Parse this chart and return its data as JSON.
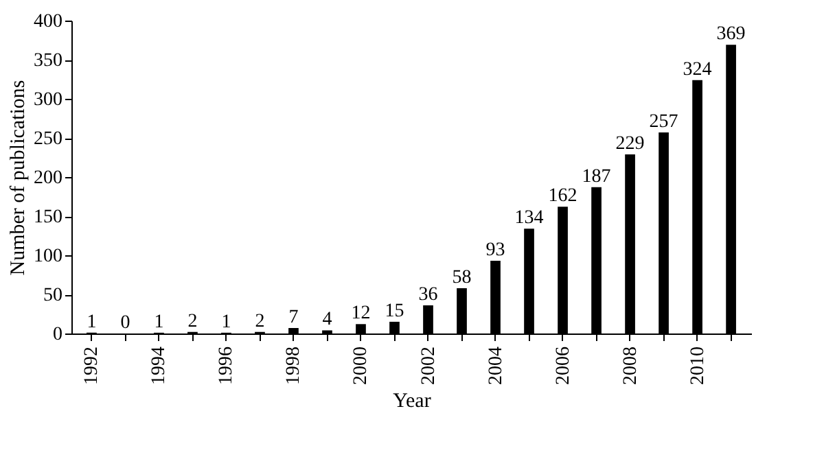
{
  "chart_data": {
    "type": "bar",
    "xlabel": "Year",
    "ylabel": "Number of publications",
    "categories": [
      "1992",
      null,
      "1994",
      null,
      "1996",
      null,
      "1998",
      null,
      "2000",
      null,
      "2002",
      null,
      "2004",
      null,
      "2006",
      null,
      "2008",
      null,
      "2010",
      null
    ],
    "values": [
      1,
      0,
      1,
      2,
      1,
      2,
      7,
      4,
      12,
      15,
      36,
      58,
      93,
      134,
      162,
      187,
      229,
      257,
      324,
      369
    ],
    "color": "#000000",
    "ylim": [
      0,
      400
    ],
    "yticks": [
      0,
      50,
      100,
      150,
      200,
      250,
      300,
      350,
      400
    ],
    "grid": false,
    "data_labels": true
  }
}
